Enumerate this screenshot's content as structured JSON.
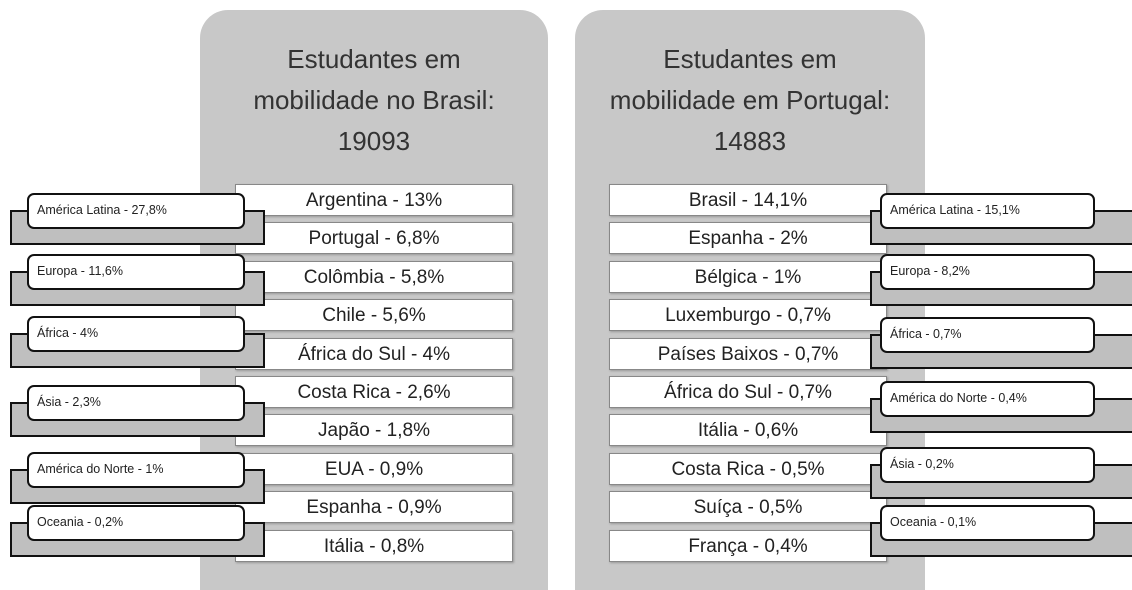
{
  "panels": [
    {
      "title": [
        "Estudantes em",
        "mobilidade no Brasil:"
      ],
      "total": "19093",
      "countries": [
        "Argentina - 13%",
        "Portugal - 6,8%",
        "Colômbia - 5,8%",
        "Chile - 5,6%",
        "África do Sul - 4%",
        "Costa Rica - 2,6%",
        "Japão - 1,8%",
        "EUA - 0,9%",
        "Espanha - 0,9%",
        "Itália - 0,8%"
      ],
      "regions": [
        "América Latina - 27,8%",
        "Europa - 11,6%",
        "África - 4%",
        "Ásia - 2,3%",
        "América do Norte -  1%",
        "Oceania - 0,2%"
      ]
    },
    {
      "title": [
        "Estudantes em",
        "mobilidade em Portugal:"
      ],
      "total": "14883",
      "countries": [
        "Brasil - 14,1%",
        "Espanha  - 2%",
        "Bélgica - 1%",
        "Luxemburgo - 0,7%",
        "Países Baixos - 0,7%",
        "África do Sul - 0,7%",
        "Itália - 0,6%",
        "Costa Rica - 0,5%",
        "Suíça - 0,5%",
        "França - 0,4%"
      ],
      "regions": [
        "América Latina - 15,1%",
        "Europa - 8,2%",
        "África - 0,7%",
        "América do Norte - 0,4%",
        "Ásia - 0,2%",
        "Oceania - 0,1%"
      ]
    }
  ]
}
